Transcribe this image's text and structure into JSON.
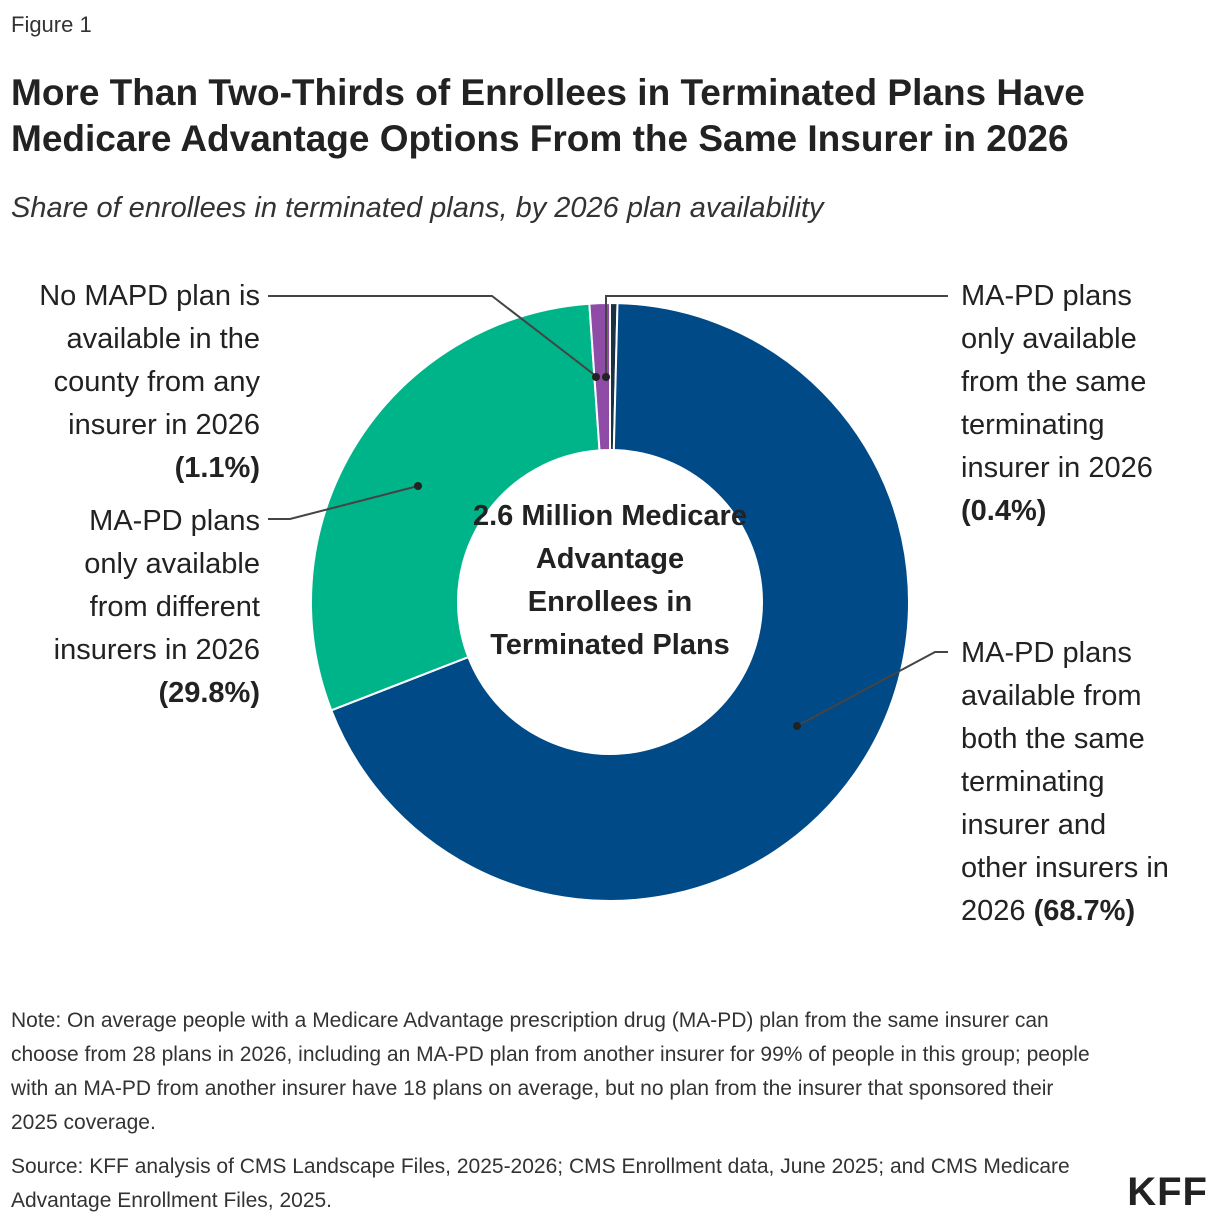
{
  "figure_label": "Figure 1",
  "title": "More Than Two-Thirds of Enrollees in Terminated Plans Have Medicare Advantage Options From the Same Insurer in 2026",
  "subtitle": "Share of enrollees in terminated plans, by 2026 plan availability",
  "chart_data": {
    "type": "pie",
    "donut": true,
    "center_label": "2.6 Million Medicare Advantage Enrollees in Terminated Plans",
    "slices": [
      {
        "label": "MA-PD plans only available from the same terminating insurer in 2026",
        "value": 0.4,
        "value_label": "(0.4%)",
        "color": "#1b2f45"
      },
      {
        "label": "MA-PD plans available from both the same terminating insurer and other insurers in 2026",
        "value": 68.7,
        "value_label": "(68.7%)",
        "color": "#004a87"
      },
      {
        "label": "MA-PD plans only available from different insurers in 2026",
        "value": 29.8,
        "value_label": "(29.8%)",
        "color": "#00b48a"
      },
      {
        "label": "No MAPD plan is available in the county from any insurer in 2026",
        "value": 1.1,
        "value_label": "(1.1%)",
        "color": "#8e4ca7"
      }
    ]
  },
  "callouts": {
    "no_mapd": {
      "lines": [
        "No MAPD plan is",
        "available in the",
        "county from any",
        "insurer in 2026"
      ],
      "pct": "(1.1%)"
    },
    "different": {
      "lines": [
        "MA-PD plans",
        "only available",
        "from different",
        "insurers in 2026"
      ],
      "pct": "(29.8%)"
    },
    "same_only": {
      "lines": [
        "MA-PD plans",
        "only available",
        "from the same",
        "terminating",
        "insurer in 2026"
      ],
      "pct": "(0.4%)"
    },
    "both": {
      "lines": [
        "MA-PD plans",
        "available from",
        "both the same",
        "terminating",
        "insurer and",
        "other insurers in",
        "2026"
      ],
      "pct": "(68.7%)"
    }
  },
  "note": "Note: On average people with a Medicare Advantage prescription drug (MA-PD) plan from the same insurer can choose from 28 plans in 2026, including an MA-PD plan from another insurer for 99% of people in this group; people with an MA-PD from another insurer have 18 plans on average, but no plan from the insurer that sponsored their 2025 coverage.",
  "source": "Source: KFF analysis of CMS Landscape Files, 2025-2026; CMS Enrollment data, June 2025; and CMS Medicare Advantage Enrollment Files, 2025.",
  "logo": "KFF"
}
